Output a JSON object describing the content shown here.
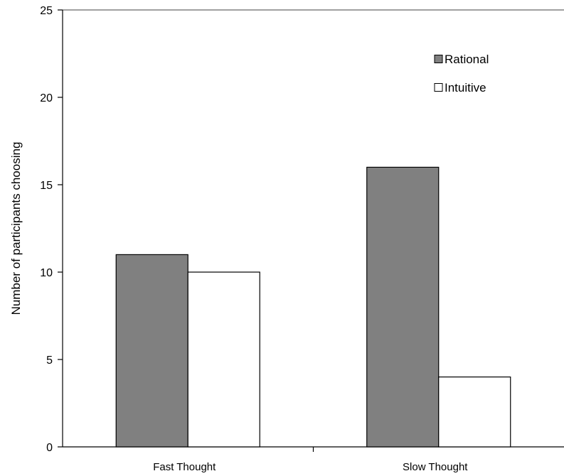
{
  "chart_data": {
    "type": "bar",
    "title": "",
    "xlabel": "",
    "ylabel": "Number of participants choosing",
    "categories": [
      "Fast Thought",
      "Slow Thought"
    ],
    "series": [
      {
        "name": "Rational",
        "values": [
          11,
          16
        ],
        "color": "#808080"
      },
      {
        "name": "Intuitive",
        "values": [
          10,
          4
        ],
        "color": "#ffffff"
      }
    ],
    "ylim": [
      0,
      25
    ],
    "yticks": [
      0,
      5,
      10,
      15,
      20,
      25
    ],
    "grid": false,
    "legend_position": "top-right"
  }
}
